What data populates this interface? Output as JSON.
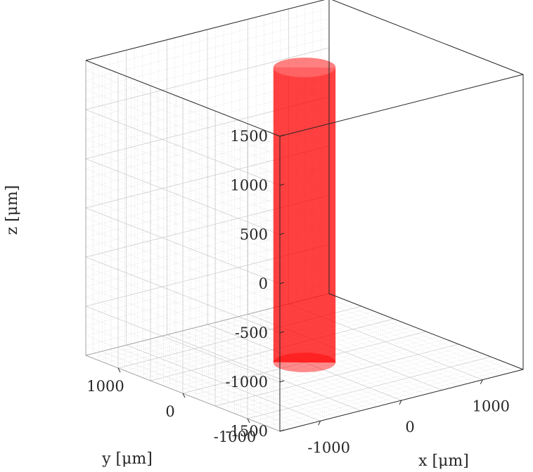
{
  "chart_data": {
    "type": "3d-surface",
    "xlabel": "x [μm]",
    "ylabel": "y [μm]",
    "zlabel": "z [μm]",
    "xlim": [
      -1500,
      1500
    ],
    "ylim": [
      -1500,
      1500
    ],
    "zlim": [
      -1500,
      1500
    ],
    "xticks": [
      -1000,
      0,
      1000
    ],
    "yticks": [
      -1000,
      0,
      1000
    ],
    "zticks": [
      -1500,
      -1000,
      -500,
      0,
      500,
      1000,
      1500
    ],
    "grid": true,
    "minor_grid": true,
    "box": true,
    "object": {
      "shape": "cylinder",
      "axis": "z",
      "center": [
        0,
        0
      ],
      "radius": 300,
      "zrange": [
        -1500,
        1500
      ],
      "color": "#ff0000",
      "opacity": 0.75
    }
  }
}
